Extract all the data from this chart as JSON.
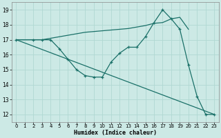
{
  "xlabel": "Humidex (Indice chaleur)",
  "bg_color": "#cce9e5",
  "grid_color": "#b0d8d2",
  "line_color": "#1a7068",
  "xlim": [
    -0.5,
    23.5
  ],
  "ylim": [
    11.5,
    19.5
  ],
  "xticks": [
    0,
    1,
    2,
    3,
    4,
    5,
    6,
    7,
    8,
    9,
    10,
    11,
    12,
    13,
    14,
    15,
    16,
    17,
    18,
    19,
    20,
    21,
    22,
    23
  ],
  "yticks": [
    12,
    13,
    14,
    15,
    16,
    17,
    18,
    19
  ],
  "line1_x": [
    0,
    1,
    2,
    3,
    4,
    5,
    6,
    7,
    8,
    9,
    10,
    11,
    12,
    13,
    14,
    15,
    16,
    17,
    18,
    19,
    20
  ],
  "line1_y": [
    17,
    17,
    17,
    17,
    17.1,
    17.2,
    17.3,
    17.4,
    17.5,
    17.55,
    17.6,
    17.65,
    17.7,
    17.75,
    17.85,
    17.95,
    18.1,
    18.15,
    18.4,
    18.5,
    17.7
  ],
  "line2_x": [
    0,
    2,
    3,
    4,
    5,
    6,
    7,
    8,
    9,
    10,
    11,
    12,
    13,
    14,
    15,
    16,
    17,
    18,
    19,
    20,
    21,
    22,
    23
  ],
  "line2_y": [
    17,
    17,
    17,
    17,
    16.4,
    15.7,
    15.0,
    14.6,
    14.5,
    14.5,
    15.5,
    16.1,
    16.5,
    16.5,
    17.2,
    18.15,
    19.0,
    18.4,
    17.7,
    15.3,
    13.2,
    12.0,
    12.0
  ],
  "line3_x": [
    0,
    23
  ],
  "line3_y": [
    17,
    12
  ]
}
